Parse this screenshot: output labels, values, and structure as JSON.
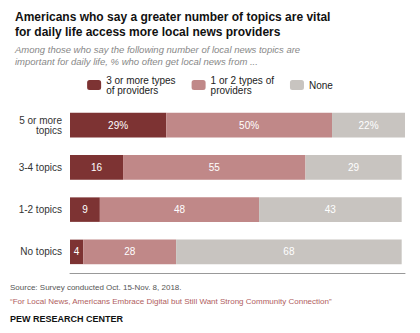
{
  "chart_data": {
    "type": "bar",
    "orientation": "horizontal",
    "stacked": true,
    "title": "Americans who say a greater number of topics are vital\nfor daily life access more local news providers",
    "subtitle": "Among those who say the following number of local news topics are\nimportant for daily life, % who often get local news from ...",
    "categories": [
      "5 or more\ntopics",
      "3-4 topics",
      "1-2 topics",
      "No topics"
    ],
    "series": [
      {
        "name": "3 or more types\nof providers",
        "color": "#7d3333",
        "values": [
          29,
          16,
          9,
          4
        ],
        "value_labels": [
          "29%",
          "16",
          "9",
          "4"
        ]
      },
      {
        "name": "1 or 2 types of\nproviders",
        "color": "#c08888",
        "values": [
          50,
          55,
          48,
          28
        ],
        "value_labels": [
          "50%",
          "55",
          "48",
          "28"
        ]
      },
      {
        "name": "None",
        "color": "#c8c4c0",
        "values": [
          22,
          29,
          43,
          68
        ],
        "value_labels": [
          "22%",
          "29",
          "43",
          "68"
        ]
      }
    ],
    "xlim": [
      0,
      101
    ],
    "tick_labels": "y",
    "data_labels": true,
    "legend": "top",
    "grid": false,
    "annotations": [
      "Source: Survey conducted Oct. 15-Nov. 8, 2018.",
      "“For Local News, Americans Embrace Digital but Still Want Strong Community Connection”",
      "PEW RESEARCH CENTER"
    ]
  }
}
